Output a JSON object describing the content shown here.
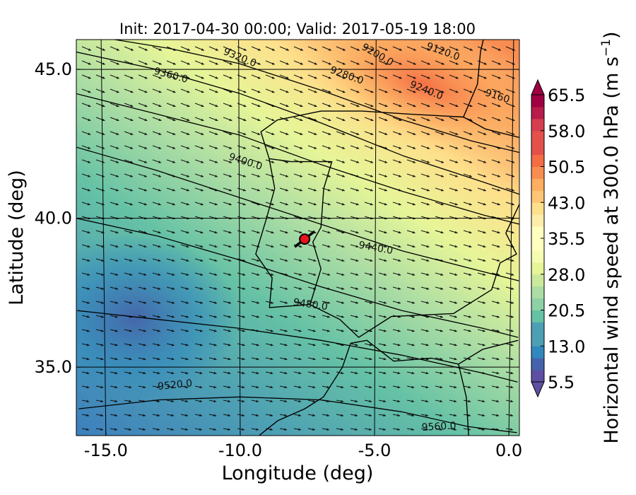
{
  "chart_data": {
    "type": "heatmap",
    "title": "Init: 2017-04-30 00:00; Valid: 2017-05-19 18:00",
    "xlabel": "Longitude (deg)",
    "ylabel": "Latitude (deg)",
    "xlim": [
      -16.0,
      0.3
    ],
    "ylim": [
      32.7,
      46.0
    ],
    "x_ticks": [
      {
        "value": -15.0,
        "label": "-15.0"
      },
      {
        "value": -10.0,
        "label": "-10.0"
      },
      {
        "value": -5.0,
        "label": "-5.0"
      },
      {
        "value": 0.0,
        "label": "0.0"
      }
    ],
    "y_ticks": [
      {
        "value": 35.0,
        "label": "35.0"
      },
      {
        "value": 40.0,
        "label": "40.0"
      },
      {
        "value": 45.0,
        "label": "45.0"
      }
    ],
    "colorbar": {
      "label": "Horizontal wind speed at 300.0 hPa (m s$^{-1}$)",
      "label_main": "Horizontal wind speed at 300.0 hPa (m s",
      "label_exp": "−1",
      "label_end": ")",
      "min": 5.5,
      "max": 65.5,
      "step": 2.5,
      "ticks": [
        "5.5",
        "13.0",
        "20.5",
        "28.0",
        "35.5",
        "43.0",
        "50.5",
        "58.0",
        "65.5"
      ],
      "extend": "both",
      "colormap": "Spectral_r",
      "colors": [
        "#5e4fa2",
        "#4563aa",
        "#3288bd",
        "#4d9fb4",
        "#66c2a5",
        "#8dd1a4",
        "#abdda4",
        "#cbe99d",
        "#e6f598",
        "#f6fbb2",
        "#ffffbf",
        "#feedaa",
        "#fee08b",
        "#fdc574",
        "#fdae61",
        "#f88d52",
        "#f46d43",
        "#e2514a",
        "#d53e4f",
        "#b71c4a",
        "#9e0142"
      ]
    },
    "contour_labels": [
      "9120.0",
      "9160",
      "9200.0",
      "9240.0",
      "9280.0",
      "9320.0",
      "9360.0",
      "9400.0",
      "9440.0",
      "9480.0",
      "9520.0",
      "9560.0"
    ],
    "marker": {
      "lon": -7.6,
      "lat": 39.3,
      "color": "#e8141c"
    },
    "series": [
      {
        "name": "",
        "type": "contour",
        "points": [
          {
            "lon": -14.5,
            "lat": 46.0
          },
          {
            "lon": -12.5,
            "lat": 45.7
          },
          {
            "lon": -10.0,
            "lat": 45.2
          },
          {
            "lon": -7.0,
            "lat": 44.3
          },
          {
            "lon": -4.0,
            "lat": 43.3
          },
          {
            "lon": -1.5,
            "lat": 42.6
          },
          {
            "lon": 0.3,
            "lat": 42.2
          }
        ]
      },
      {
        "name": "",
        "type": "contour",
        "points": [
          {
            "lon": -16.0,
            "lat": 45.6
          },
          {
            "lon": -13.0,
            "lat": 45.0
          },
          {
            "lon": -10.0,
            "lat": 44.2
          },
          {
            "lon": -7.0,
            "lat": 43.2
          },
          {
            "lon": -4.0,
            "lat": 42.1
          },
          {
            "lon": -1.0,
            "lat": 41.2
          },
          {
            "lon": 0.3,
            "lat": 40.8
          }
        ]
      },
      {
        "name": "",
        "type": "contour",
        "points": [
          {
            "lon": -16.0,
            "lat": 44.2
          },
          {
            "lon": -13.0,
            "lat": 43.5
          },
          {
            "lon": -10.0,
            "lat": 42.8
          },
          {
            "lon": -7.0,
            "lat": 41.8
          },
          {
            "lon": -4.0,
            "lat": 40.9
          },
          {
            "lon": -1.0,
            "lat": 40.1
          },
          {
            "lon": 0.3,
            "lat": 39.8
          }
        ]
      },
      {
        "name": "",
        "type": "contour",
        "points": [
          {
            "lon": -16.0,
            "lat": 42.4
          },
          {
            "lon": -13.0,
            "lat": 41.6
          },
          {
            "lon": -10.0,
            "lat": 40.7
          },
          {
            "lon": -7.0,
            "lat": 39.8
          },
          {
            "lon": -4.0,
            "lat": 38.9
          },
          {
            "lon": -1.0,
            "lat": 38.2
          },
          {
            "lon": 0.3,
            "lat": 37.9
          }
        ]
      },
      {
        "name": "",
        "type": "contour",
        "points": [
          {
            "lon": -16.0,
            "lat": 40.0
          },
          {
            "lon": -13.0,
            "lat": 39.4
          },
          {
            "lon": -10.0,
            "lat": 38.6
          },
          {
            "lon": -7.0,
            "lat": 37.7
          },
          {
            "lon": -4.0,
            "lat": 36.9
          },
          {
            "lon": -1.0,
            "lat": 36.3
          },
          {
            "lon": 0.3,
            "lat": 36.0
          }
        ]
      },
      {
        "name": "",
        "type": "contour",
        "points": [
          {
            "lon": -16.0,
            "lat": 36.9
          },
          {
            "lon": -13.0,
            "lat": 36.6
          },
          {
            "lon": -10.0,
            "lat": 36.3
          },
          {
            "lon": -7.0,
            "lat": 35.9
          },
          {
            "lon": -4.0,
            "lat": 35.4
          },
          {
            "lon": -1.0,
            "lat": 34.8
          },
          {
            "lon": 0.3,
            "lat": 34.5
          }
        ]
      },
      {
        "name": "",
        "type": "contour",
        "points": [
          {
            "lon": -16.0,
            "lat": 33.6
          },
          {
            "lon": -13.0,
            "lat": 33.9
          },
          {
            "lon": -10.0,
            "lat": 34.0
          },
          {
            "lon": -7.0,
            "lat": 33.9
          },
          {
            "lon": -4.0,
            "lat": 33.5
          },
          {
            "lon": -1.5,
            "lat": 33.0
          },
          {
            "lon": 0.3,
            "lat": 32.8
          }
        ]
      },
      {
        "name": "",
        "type": "coastline",
        "points": [
          {
            "lon": -8.6,
            "lat": 43.3
          },
          {
            "lon": -9.2,
            "lat": 42.9
          },
          {
            "lon": -8.9,
            "lat": 42.0
          },
          {
            "lon": -8.7,
            "lat": 41.0
          },
          {
            "lon": -9.0,
            "lat": 40.0
          },
          {
            "lon": -9.4,
            "lat": 38.8
          },
          {
            "lon": -8.8,
            "lat": 38.0
          },
          {
            "lon": -8.9,
            "lat": 37.0
          },
          {
            "lon": -7.4,
            "lat": 37.1
          },
          {
            "lon": -6.3,
            "lat": 36.6
          },
          {
            "lon": -5.6,
            "lat": 36.0
          },
          {
            "lon": -4.4,
            "lat": 36.7
          },
          {
            "lon": -2.1,
            "lat": 36.8
          },
          {
            "lon": -0.7,
            "lat": 37.6
          },
          {
            "lon": -0.4,
            "lat": 38.5
          },
          {
            "lon": 0.2,
            "lat": 38.8
          },
          {
            "lon": -0.2,
            "lat": 39.5
          },
          {
            "lon": 0.3,
            "lat": 40.5
          }
        ]
      },
      {
        "name": "",
        "type": "coastline",
        "points": [
          {
            "lon": -8.6,
            "lat": 43.3
          },
          {
            "lon": -7.0,
            "lat": 43.6
          },
          {
            "lon": -5.5,
            "lat": 43.6
          },
          {
            "lon": -3.8,
            "lat": 43.5
          },
          {
            "lon": -1.8,
            "lat": 43.4
          },
          {
            "lon": -1.3,
            "lat": 44.5
          },
          {
            "lon": -1.2,
            "lat": 45.6
          },
          {
            "lon": -1.1,
            "lat": 46.0
          }
        ]
      },
      {
        "name": "",
        "type": "coastline",
        "points": [
          {
            "lon": -5.9,
            "lat": 35.8
          },
          {
            "lon": -6.2,
            "lat": 35.0
          },
          {
            "lon": -6.9,
            "lat": 34.0
          },
          {
            "lon": -7.6,
            "lat": 33.6
          },
          {
            "lon": -8.6,
            "lat": 33.2
          },
          {
            "lon": -9.3,
            "lat": 32.7
          }
        ]
      },
      {
        "name": "",
        "type": "coastline",
        "points": [
          {
            "lon": -5.9,
            "lat": 35.8
          },
          {
            "lon": -5.3,
            "lat": 35.9
          },
          {
            "lon": -4.3,
            "lat": 35.2
          },
          {
            "lon": -2.9,
            "lat": 35.3
          },
          {
            "lon": -1.9,
            "lat": 35.1
          },
          {
            "lon": -1.0,
            "lat": 35.6
          },
          {
            "lon": 0.3,
            "lat": 35.9
          }
        ]
      },
      {
        "name": "",
        "type": "border",
        "points": [
          {
            "lon": -8.9,
            "lat": 42.0
          },
          {
            "lon": -8.1,
            "lat": 41.9
          },
          {
            "lon": -6.6,
            "lat": 41.9
          },
          {
            "lon": -6.9,
            "lat": 41.0
          },
          {
            "lon": -7.0,
            "lat": 39.7
          },
          {
            "lon": -7.3,
            "lat": 39.2
          },
          {
            "lon": -7.0,
            "lat": 38.3
          },
          {
            "lon": -7.4,
            "lat": 37.1
          }
        ]
      },
      {
        "name": "",
        "type": "border",
        "points": [
          {
            "lon": -1.8,
            "lat": 43.4
          },
          {
            "lon": -1.0,
            "lat": 43.0
          },
          {
            "lon": 0.3,
            "lat": 42.7
          }
        ]
      },
      {
        "name": "",
        "type": "border",
        "points": [
          {
            "lon": -1.9,
            "lat": 35.1
          },
          {
            "lon": -1.6,
            "lat": 34.0
          },
          {
            "lon": -1.5,
            "lat": 32.7
          }
        ]
      }
    ]
  }
}
